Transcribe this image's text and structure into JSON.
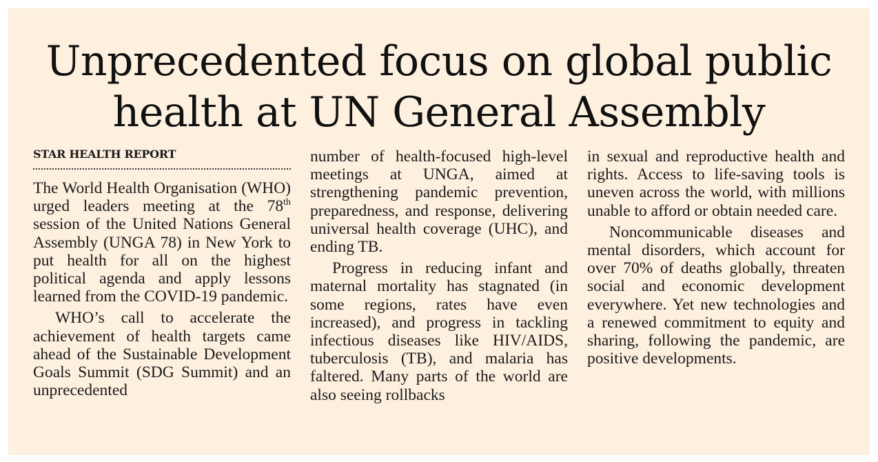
{
  "headline": {
    "line1": "Unprecedented focus on global public",
    "line2": "health at UN General Assembly"
  },
  "byline": "STAR HEALTH REPORT",
  "columns": {
    "col1": {
      "p1_a": "The World Health Organisation (WHO) urged leaders meeting at the 78",
      "p1_sup": "th",
      "p1_b": " session of the United Nations General Assembly (UNGA 78) in New York to put health for all on the highest political agenda and apply lessons learned from the COVID-19 pandemic.",
      "p2": "WHO’s call to accelerate the achievement of health targets came ahead of the Sustainable Development Goals Summit (SDG Summit) and an unprecedented"
    },
    "col2": {
      "p1": "number of health-focused high-level meetings at UNGA, aimed at strengthening pandemic prevention, preparedness, and response, delivering universal health coverage (UHC), and ending TB.",
      "p2": "Progress in reducing infant and maternal mortality has stagnated (in some regions, rates have even increased), and progress in tackling infectious diseases like HIV/AIDS, tuberculosis (TB), and malaria has faltered. Many parts of the world are also seeing rollbacks"
    },
    "col3": {
      "p1": "in sexual and reproductive health and rights. Access to life-saving tools is uneven across the world, with millions unable to afford or obtain needed care.",
      "p2": "Noncommunicable diseases and mental disorders, which account for over 70% of deaths globally, threaten social and economic development everywhere. Yet new technologies and a renewed commitment to equity and sharing, following the pandemic, are positive developments."
    }
  }
}
